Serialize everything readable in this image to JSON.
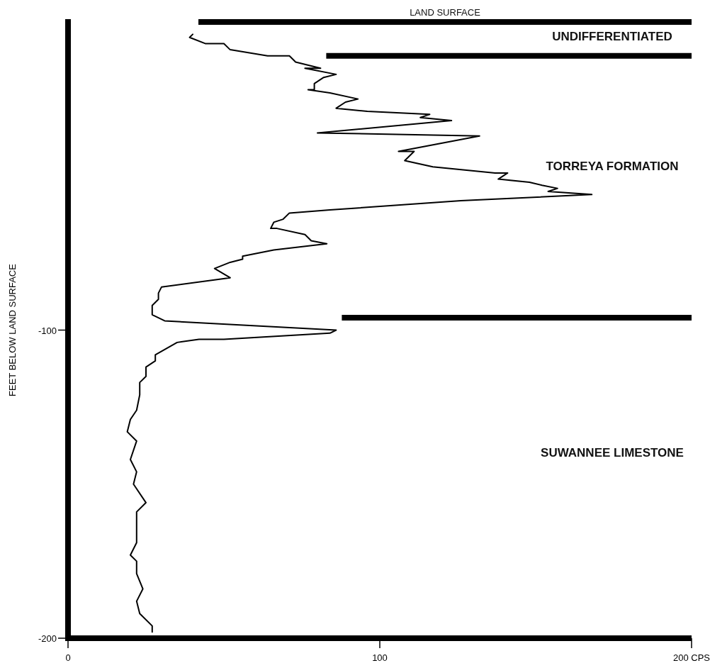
{
  "chart_data": {
    "type": "line",
    "ylabel": "FEET BELOW LAND SURFACE",
    "xlim": [
      0,
      200
    ],
    "xticks": [
      0,
      100,
      {
        "value": 200,
        "label": "200 CPS"
      }
    ],
    "ylim": [
      -200,
      0
    ],
    "yticks": [
      -200,
      -100
    ],
    "grid": false,
    "marker": "none",
    "line_style": "solid",
    "series": [
      {
        "color": "#000000",
        "x": [
          40,
          39,
          44,
          50,
          52,
          64,
          71,
          73,
          81,
          76,
          86,
          82,
          79,
          79,
          77,
          84,
          93,
          89,
          86,
          96,
          116,
          113,
          123,
          80,
          132,
          106,
          111,
          108,
          117,
          137,
          141,
          138,
          148,
          152,
          157,
          154,
          168,
          126,
          84,
          71,
          69,
          66,
          65,
          67,
          76,
          78,
          83,
          66,
          56,
          56,
          52,
          47,
          52,
          30,
          29,
          29,
          27,
          27,
          31,
          86,
          84,
          50,
          42,
          35,
          28,
          28,
          25,
          25,
          23,
          23,
          22,
          20,
          19,
          22,
          20,
          22,
          21,
          25,
          22,
          22,
          22,
          20,
          22,
          22,
          24,
          22,
          23,
          27,
          27
        ],
        "values": [
          -4,
          -5,
          -7,
          -7,
          -9,
          -11,
          -11,
          -13,
          -15,
          -15,
          -17,
          -18,
          -20,
          -22,
          -22,
          -23,
          -25,
          -26,
          -28,
          -29,
          -30,
          -31,
          -32,
          -36,
          -37,
          -42,
          -42,
          -45,
          -47,
          -49,
          -49,
          -51,
          -52,
          -53,
          -54,
          -55,
          -56,
          -58,
          -61,
          -62,
          -64,
          -65,
          -67,
          -67,
          -69,
          -71,
          -72,
          -74,
          -76,
          -77,
          -78,
          -80,
          -83,
          -86,
          -88,
          -90,
          -92,
          -95,
          -97,
          -100,
          -101,
          -103,
          -103,
          -104,
          -108,
          -110,
          -112,
          -115,
          -117,
          -121,
          -126,
          -129,
          -133,
          -136,
          -142,
          -146,
          -150,
          -156,
          -159,
          -165,
          -169,
          -173,
          -175,
          -179,
          -184,
          -188,
          -192,
          -196,
          -198
        ]
      }
    ],
    "ref_lines": [
      {
        "axis": "y",
        "value": 0,
        "label": "LAND SURFACE",
        "color": "#000000"
      },
      {
        "axis": "y",
        "value": -11,
        "color": "#000000"
      },
      {
        "axis": "y",
        "value": -96,
        "color": "#000000"
      }
    ],
    "annotations": [
      "UNDIFFERENTIATED",
      "TORREYA FORMATION",
      "SUWANNEE LIMESTONE"
    ]
  }
}
